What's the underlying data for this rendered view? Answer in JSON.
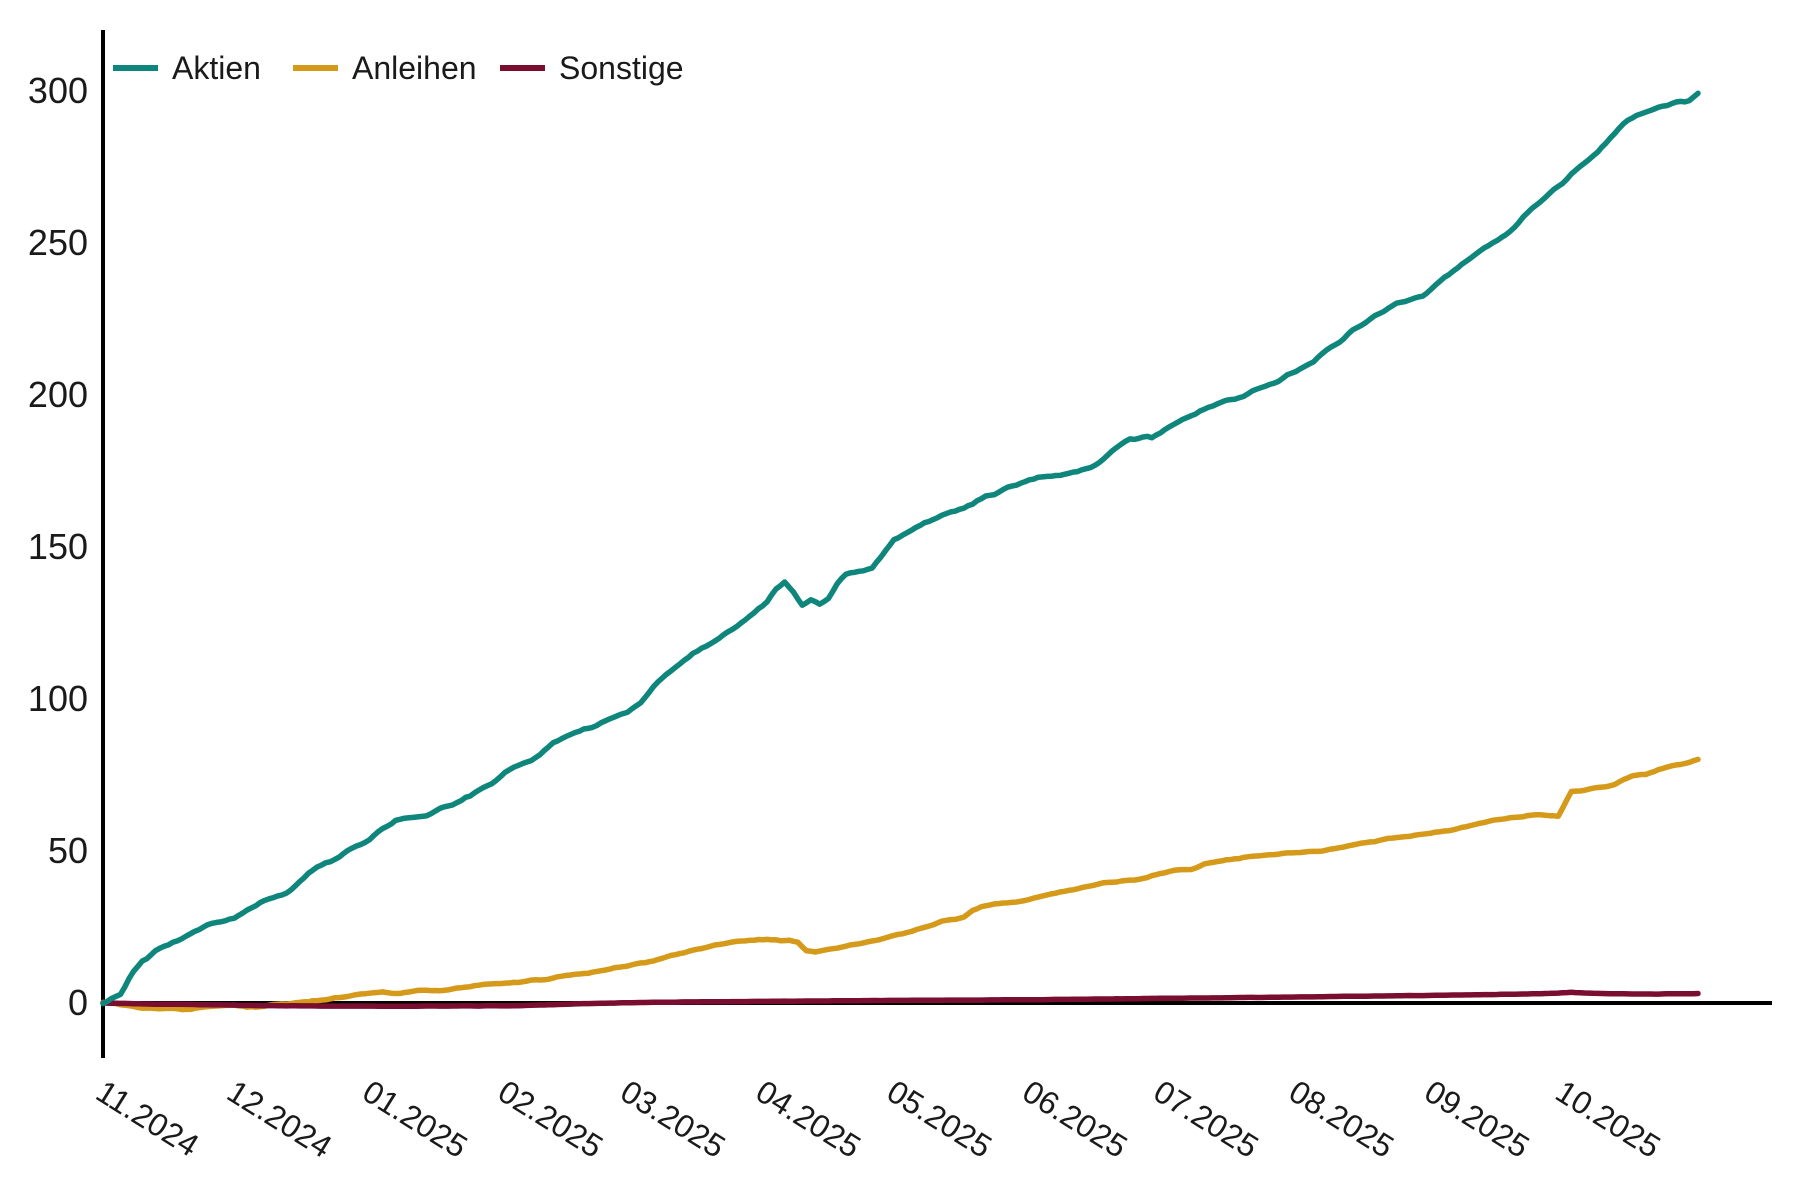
{
  "chart_data": {
    "type": "line",
    "title": "",
    "legend": {
      "position": "top-left",
      "entries": [
        "Aktien",
        "Anleihen",
        "Sonstige"
      ]
    },
    "x_axis": {
      "label": "",
      "tick_labels": [
        "11.2024",
        "12.2024",
        "01.2025",
        "02.2025",
        "03.2025",
        "04.2025",
        "05.2025",
        "06.2025",
        "07.2025",
        "08.2025",
        "09.2025",
        "10.2025"
      ],
      "tick_days": [
        0,
        30,
        61,
        92,
        120,
        151,
        181,
        212,
        242,
        273,
        304,
        334
      ],
      "domain_days": [
        0,
        365
      ],
      "tick_rotation_deg": 32
    },
    "y_axis": {
      "label": "",
      "ticks": [
        0,
        50,
        100,
        150,
        200,
        250,
        300
      ],
      "range": [
        0,
        300
      ]
    },
    "grid": false,
    "axis_color": "#000000",
    "series": [
      {
        "name": "Aktien",
        "color": "#0f867c",
        "points": [
          [
            0,
            0.5
          ],
          [
            2,
            1.5
          ],
          [
            4,
            3
          ],
          [
            6,
            8
          ],
          [
            9,
            14
          ],
          [
            12,
            17
          ],
          [
            15,
            19.5
          ],
          [
            18,
            21.5
          ],
          [
            21,
            24
          ],
          [
            24,
            25.5
          ],
          [
            27,
            26.5
          ],
          [
            30,
            28
          ],
          [
            33,
            30.5
          ],
          [
            36,
            33
          ],
          [
            39,
            34.5
          ],
          [
            42,
            36
          ],
          [
            45,
            40
          ],
          [
            48,
            44
          ],
          [
            51,
            46.5
          ],
          [
            54,
            48
          ],
          [
            57,
            50.5
          ],
          [
            61,
            54
          ],
          [
            64,
            57.5
          ],
          [
            67,
            60
          ],
          [
            70,
            61
          ],
          [
            74,
            61.5
          ],
          [
            78,
            64
          ],
          [
            82,
            66.5
          ],
          [
            85,
            69
          ],
          [
            89,
            72
          ],
          [
            92,
            76
          ],
          [
            95,
            78
          ],
          [
            99,
            81
          ],
          [
            103,
            85
          ],
          [
            107,
            88
          ],
          [
            111,
            90.5
          ],
          [
            115,
            92.5
          ],
          [
            120,
            95.5
          ],
          [
            123,
            99
          ],
          [
            126,
            104
          ],
          [
            129,
            108.5
          ],
          [
            132,
            112
          ],
          [
            135,
            115
          ],
          [
            138,
            117.5
          ],
          [
            141,
            119.5
          ],
          [
            143,
            122
          ],
          [
            146,
            125
          ],
          [
            149,
            128
          ],
          [
            152,
            132
          ],
          [
            154,
            136
          ],
          [
            156,
            139
          ],
          [
            158,
            135.5
          ],
          [
            160,
            131
          ],
          [
            162,
            132.5
          ],
          [
            164,
            131
          ],
          [
            166,
            133.5
          ],
          [
            168,
            138
          ],
          [
            170,
            141
          ],
          [
            173,
            141.5
          ],
          [
            176,
            143
          ],
          [
            178,
            146.5
          ],
          [
            181,
            152.5
          ],
          [
            184,
            155
          ],
          [
            188,
            158
          ],
          [
            192,
            160.5
          ],
          [
            196,
            162.5
          ],
          [
            200,
            165
          ],
          [
            204,
            167.5
          ],
          [
            208,
            170
          ],
          [
            212,
            172
          ],
          [
            215,
            173
          ],
          [
            219,
            173.5
          ],
          [
            223,
            175
          ],
          [
            226,
            176.5
          ],
          [
            229,
            179
          ],
          [
            232,
            182.5
          ],
          [
            235,
            185.5
          ],
          [
            238,
            186.5
          ],
          [
            240,
            186
          ],
          [
            242,
            188
          ],
          [
            246,
            191
          ],
          [
            250,
            193.5
          ],
          [
            254,
            196.5
          ],
          [
            258,
            198.5
          ],
          [
            262,
            200.5
          ],
          [
            266,
            203
          ],
          [
            270,
            205.5
          ],
          [
            273,
            207.5
          ],
          [
            277,
            211
          ],
          [
            281,
            215.5
          ],
          [
            285,
            220
          ],
          [
            288,
            223
          ],
          [
            291,
            226
          ],
          [
            295,
            229
          ],
          [
            299,
            231.5
          ],
          [
            302,
            233
          ],
          [
            304,
            235
          ],
          [
            308,
            239.5
          ],
          [
            312,
            244
          ],
          [
            316,
            248
          ],
          [
            320,
            252
          ],
          [
            323,
            255
          ],
          [
            326,
            260
          ],
          [
            330,
            265
          ],
          [
            334,
            270
          ],
          [
            338,
            275
          ],
          [
            342,
            280
          ],
          [
            345,
            285
          ],
          [
            348,
            289
          ],
          [
            351,
            292
          ],
          [
            354,
            293.5
          ],
          [
            357,
            295
          ],
          [
            360,
            296.5
          ],
          [
            363,
            297
          ],
          [
            365,
            299
          ]
        ]
      },
      {
        "name": "Anleihen",
        "color": "#d59a1a",
        "points": [
          [
            0,
            0.3
          ],
          [
            3,
            -0.3
          ],
          [
            6,
            -1
          ],
          [
            9,
            -1.8
          ],
          [
            12,
            -2
          ],
          [
            15,
            -1.7
          ],
          [
            18,
            -2.2
          ],
          [
            21,
            -1.8
          ],
          [
            24,
            -1.3
          ],
          [
            27,
            -1
          ],
          [
            30,
            -0.8
          ],
          [
            33,
            -1.4
          ],
          [
            36,
            -1.2
          ],
          [
            39,
            -0.7
          ],
          [
            43,
            -0.2
          ],
          [
            47,
            0.5
          ],
          [
            51,
            1.2
          ],
          [
            55,
            2
          ],
          [
            58,
            2.5
          ],
          [
            61,
            3.2
          ],
          [
            64,
            3.6
          ],
          [
            67,
            3.1
          ],
          [
            70,
            3.6
          ],
          [
            73,
            4.3
          ],
          [
            77,
            4.1
          ],
          [
            81,
            5
          ],
          [
            85,
            5.6
          ],
          [
            89,
            6.2
          ],
          [
            92,
            6.6
          ],
          [
            96,
            7
          ],
          [
            100,
            7.6
          ],
          [
            104,
            8.5
          ],
          [
            108,
            9.2
          ],
          [
            112,
            10.2
          ],
          [
            116,
            11.2
          ],
          [
            120,
            12.2
          ],
          [
            124,
            13.2
          ],
          [
            128,
            14.6
          ],
          [
            132,
            16.2
          ],
          [
            136,
            17.6
          ],
          [
            140,
            19
          ],
          [
            144,
            20
          ],
          [
            148,
            20.6
          ],
          [
            152,
            20.9
          ],
          [
            155,
            20.4
          ],
          [
            157,
            20.7
          ],
          [
            159,
            20
          ],
          [
            161,
            17.2
          ],
          [
            163,
            16.8
          ],
          [
            166,
            17.6
          ],
          [
            169,
            18.4
          ],
          [
            172,
            19.2
          ],
          [
            176,
            20.3
          ],
          [
            180,
            21.6
          ],
          [
            183,
            22.8
          ],
          [
            186,
            23.8
          ],
          [
            189,
            25.5
          ],
          [
            192,
            27
          ],
          [
            195,
            27.6
          ],
          [
            197,
            28.4
          ],
          [
            199,
            30.5
          ],
          [
            201,
            31.9
          ],
          [
            204,
            32.3
          ],
          [
            208,
            33.2
          ],
          [
            212,
            34
          ],
          [
            216,
            35.5
          ],
          [
            220,
            36.8
          ],
          [
            224,
            38
          ],
          [
            228,
            39.2
          ],
          [
            232,
            40
          ],
          [
            236,
            40.6
          ],
          [
            239,
            41.5
          ],
          [
            242,
            42.6
          ],
          [
            246,
            43.6
          ],
          [
            249,
            44
          ],
          [
            252,
            45.6
          ],
          [
            255,
            46.6
          ],
          [
            259,
            47.4
          ],
          [
            262,
            47.9
          ],
          [
            266,
            48.5
          ],
          [
            270,
            49.2
          ],
          [
            274,
            49.4
          ],
          [
            278,
            50
          ],
          [
            282,
            50.9
          ],
          [
            286,
            51.9
          ],
          [
            290,
            53
          ],
          [
            294,
            54
          ],
          [
            298,
            54.9
          ],
          [
            302,
            55.5
          ],
          [
            306,
            56.3
          ],
          [
            310,
            57.3
          ],
          [
            314,
            58.7
          ],
          [
            318,
            60
          ],
          [
            322,
            61
          ],
          [
            326,
            61.6
          ],
          [
            329,
            61.9
          ],
          [
            331,
            61.6
          ],
          [
            333,
            61.4
          ],
          [
            334,
            64
          ],
          [
            336,
            69.5
          ],
          [
            339,
            70.2
          ],
          [
            343,
            71.2
          ],
          [
            346,
            72
          ],
          [
            348,
            73.5
          ],
          [
            350,
            74.8
          ],
          [
            353,
            75.2
          ],
          [
            356,
            76.6
          ],
          [
            359,
            77.8
          ],
          [
            362,
            78.8
          ],
          [
            365,
            80
          ]
        ]
      },
      {
        "name": "Sonstige",
        "color": "#7a0e31",
        "points": [
          [
            0,
            0
          ],
          [
            6,
            -0.2
          ],
          [
            12,
            -0.4
          ],
          [
            20,
            -0.5
          ],
          [
            30,
            -0.7
          ],
          [
            40,
            -0.9
          ],
          [
            50,
            -1
          ],
          [
            65,
            -1.05
          ],
          [
            80,
            -1
          ],
          [
            95,
            -0.9
          ],
          [
            102,
            -0.6
          ],
          [
            108,
            -0.3
          ],
          [
            114,
            -0.1
          ],
          [
            120,
            0.1
          ],
          [
            132,
            0.3
          ],
          [
            145,
            0.5
          ],
          [
            158,
            0.6
          ],
          [
            170,
            0.75
          ],
          [
            182,
            0.85
          ],
          [
            195,
            0.95
          ],
          [
            208,
            1.05
          ],
          [
            220,
            1.2
          ],
          [
            232,
            1.35
          ],
          [
            244,
            1.55
          ],
          [
            256,
            1.7
          ],
          [
            268,
            1.9
          ],
          [
            280,
            2.1
          ],
          [
            292,
            2.3
          ],
          [
            302,
            2.45
          ],
          [
            310,
            2.6
          ],
          [
            318,
            2.8
          ],
          [
            326,
            3
          ],
          [
            332,
            3.2
          ],
          [
            336,
            3.5
          ],
          [
            340,
            3.25
          ],
          [
            345,
            3.05
          ],
          [
            350,
            2.95
          ],
          [
            356,
            2.95
          ],
          [
            361,
            3.05
          ],
          [
            365,
            3.1
          ]
        ]
      }
    ]
  }
}
